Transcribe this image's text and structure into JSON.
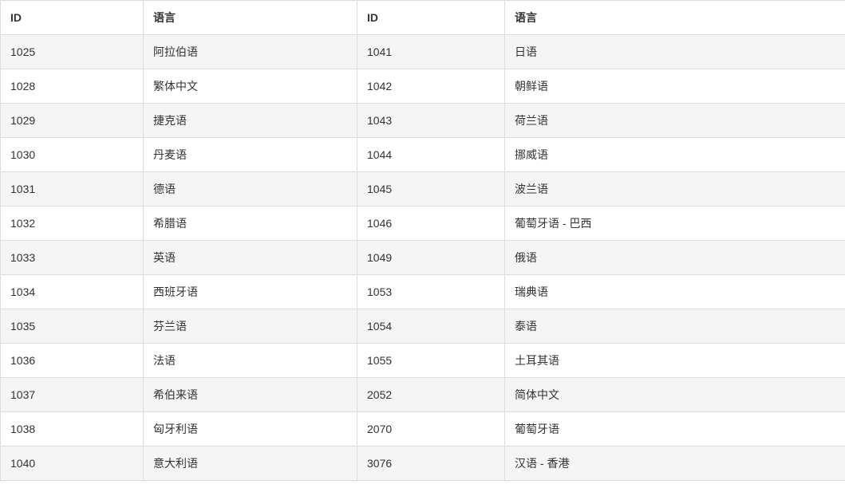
{
  "table": {
    "headers": [
      "ID",
      "语言",
      "ID",
      "语言"
    ],
    "rows": [
      [
        "1025",
        "阿拉伯语",
        "1041",
        "日语"
      ],
      [
        "1028",
        "繁体中文",
        "1042",
        "朝鲜语"
      ],
      [
        "1029",
        "捷克语",
        "1043",
        "荷兰语"
      ],
      [
        "1030",
        "丹麦语",
        "1044",
        "挪威语"
      ],
      [
        "1031",
        "德语",
        "1045",
        "波兰语"
      ],
      [
        "1032",
        "希腊语",
        "1046",
        "葡萄牙语 - 巴西"
      ],
      [
        "1033",
        "英语",
        "1049",
        "俄语"
      ],
      [
        "1034",
        "西班牙语",
        "1053",
        "瑞典语"
      ],
      [
        "1035",
        "芬兰语",
        "1054",
        "泰语"
      ],
      [
        "1036",
        "法语",
        "1055",
        "土耳其语"
      ],
      [
        "1037",
        "希伯来语",
        "2052",
        "简体中文"
      ],
      [
        "1038",
        "匈牙利语",
        "2070",
        "葡萄牙语"
      ],
      [
        "1040",
        "意大利语",
        "3076",
        "汉语 - 香港"
      ]
    ],
    "colors": {
      "stripe_bg": "#f5f5f5",
      "row_bg": "#ffffff",
      "border": "#dddddd",
      "header_text": "#333333",
      "cell_text": "#333333"
    }
  }
}
